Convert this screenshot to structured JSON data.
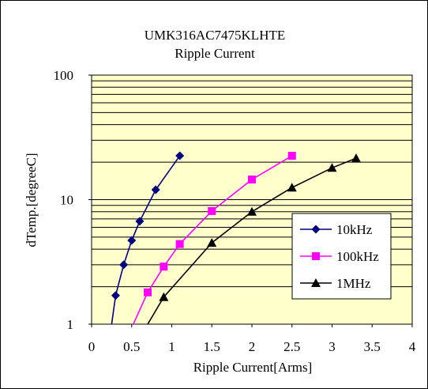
{
  "chart_data": {
    "type": "line",
    "title": "UMK316AC7475KLHTE",
    "subtitle": "Ripple Current",
    "xlabel": "Ripple Current[Arms]",
    "ylabel": "dTemp.[degreeC]",
    "xlim": [
      0,
      4
    ],
    "ylim": [
      1,
      100
    ],
    "yscale": "log",
    "x_ticks": [
      "0",
      "0.5",
      "1",
      "1.5",
      "2",
      "2.5",
      "3",
      "3.5",
      "4"
    ],
    "y_ticks": [
      "1",
      "10",
      "100"
    ],
    "grid": true,
    "plot_background": "#ffffcc",
    "legend_position": "right",
    "series": [
      {
        "name": "10kHz",
        "color": "#000080",
        "marker": "diamond",
        "x": [
          0.25,
          0.3,
          0.4,
          0.5,
          0.6,
          0.8,
          1.1
        ],
        "y": [
          1.0,
          1.7,
          3.0,
          4.7,
          6.7,
          12.0,
          22.5
        ]
      },
      {
        "name": "100kHz",
        "color": "#ff00ff",
        "marker": "square",
        "x": [
          0.52,
          0.7,
          0.9,
          1.1,
          1.5,
          2.0,
          2.5
        ],
        "y": [
          1.0,
          1.8,
          2.9,
          4.4,
          8.1,
          14.5,
          22.5
        ]
      },
      {
        "name": "1MHz",
        "color": "#000000",
        "marker": "triangle",
        "x": [
          0.7,
          0.9,
          1.5,
          2.0,
          2.5,
          3.0,
          3.3
        ],
        "y": [
          1.0,
          1.65,
          4.5,
          8.0,
          12.5,
          18.0,
          21.5
        ]
      }
    ]
  }
}
